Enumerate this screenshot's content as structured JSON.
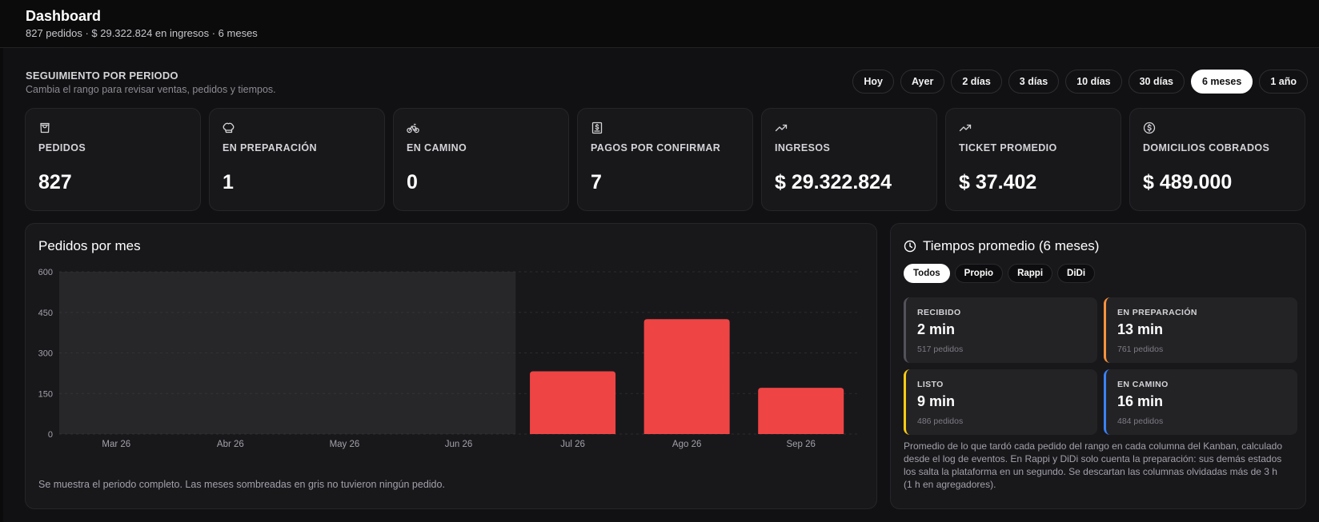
{
  "header": {
    "title": "Dashboard",
    "subtitle": "827 pedidos · $ 29.322.824 en ingresos · 6 meses"
  },
  "period": {
    "title": "SEGUIMIENTO POR PERIODO",
    "subtitle": "Cambia el rango para revisar ventas, pedidos y tiempos.",
    "ranges": [
      "Hoy",
      "Ayer",
      "2 días",
      "3 días",
      "10 días",
      "30 días",
      "6 meses",
      "1 año"
    ],
    "active_range": "6 meses"
  },
  "cards": [
    {
      "label": "PEDIDOS",
      "value": "827",
      "icon": "shopping-bag-icon"
    },
    {
      "label": "EN PREPARACIÓN",
      "value": "1",
      "icon": "chef-hat-icon"
    },
    {
      "label": "EN CAMINO",
      "value": "0",
      "icon": "bicycle-icon"
    },
    {
      "label": "PAGOS POR CONFIRMAR",
      "value": "7",
      "icon": "receipt-icon"
    },
    {
      "label": "INGRESOS",
      "value": "$ 29.322.824",
      "icon": "trending-up-icon"
    },
    {
      "label": "TICKET PROMEDIO",
      "value": "$ 37.402",
      "icon": "trending-up-icon"
    },
    {
      "label": "DOMICILIOS COBRADOS",
      "value": "$ 489.000",
      "icon": "dollar-circle-icon"
    }
  ],
  "chart_panel": {
    "title": "Pedidos por mes",
    "note": "Se muestra el periodo completo. Las meses sombreadas en gris no tuvieron ningún pedido."
  },
  "chart_data": {
    "type": "bar",
    "title": "Pedidos por mes",
    "categories": [
      "Mar 26",
      "Abr 26",
      "May 26",
      "Jun 26",
      "Jul 26",
      "Ago 26",
      "Sep 26"
    ],
    "values": [
      0,
      0,
      0,
      0,
      232,
      425,
      171
    ],
    "empty_months_shaded": [
      "Mar 26",
      "Abr 26",
      "May 26",
      "Jun 26"
    ],
    "yticks": [
      "0",
      "150",
      "300",
      "450",
      "600"
    ],
    "ylim": [
      0,
      600
    ],
    "bar_color": "#ef4444",
    "shade_color": "#27272a",
    "grid": true
  },
  "times": {
    "title": "Tiempos promedio (6 meses)",
    "filters": [
      "Todos",
      "Propio",
      "Rappi",
      "DiDi"
    ],
    "active_filter": "Todos",
    "items": [
      {
        "label": "RECIBIDO",
        "value": "2 min",
        "count": "517 pedidos",
        "color": "#52525b"
      },
      {
        "label": "EN PREPARACIÓN",
        "value": "13 min",
        "count": "761 pedidos",
        "color": "#fb923c"
      },
      {
        "label": "LISTO",
        "value": "9 min",
        "count": "486 pedidos",
        "color": "#facc15"
      },
      {
        "label": "EN CAMINO",
        "value": "16 min",
        "count": "484 pedidos",
        "color": "#3b82f6"
      }
    ],
    "description": "Promedio de lo que tardó cada pedido del rango en cada columna del Kanban, calculado desde el log de eventos. En Rappi y DiDi solo cuenta la preparación: sus demás estados los salta la plataforma en un segundo. Se descartan las columnas olvidadas más de 3 h (1 h en agregadores)."
  }
}
